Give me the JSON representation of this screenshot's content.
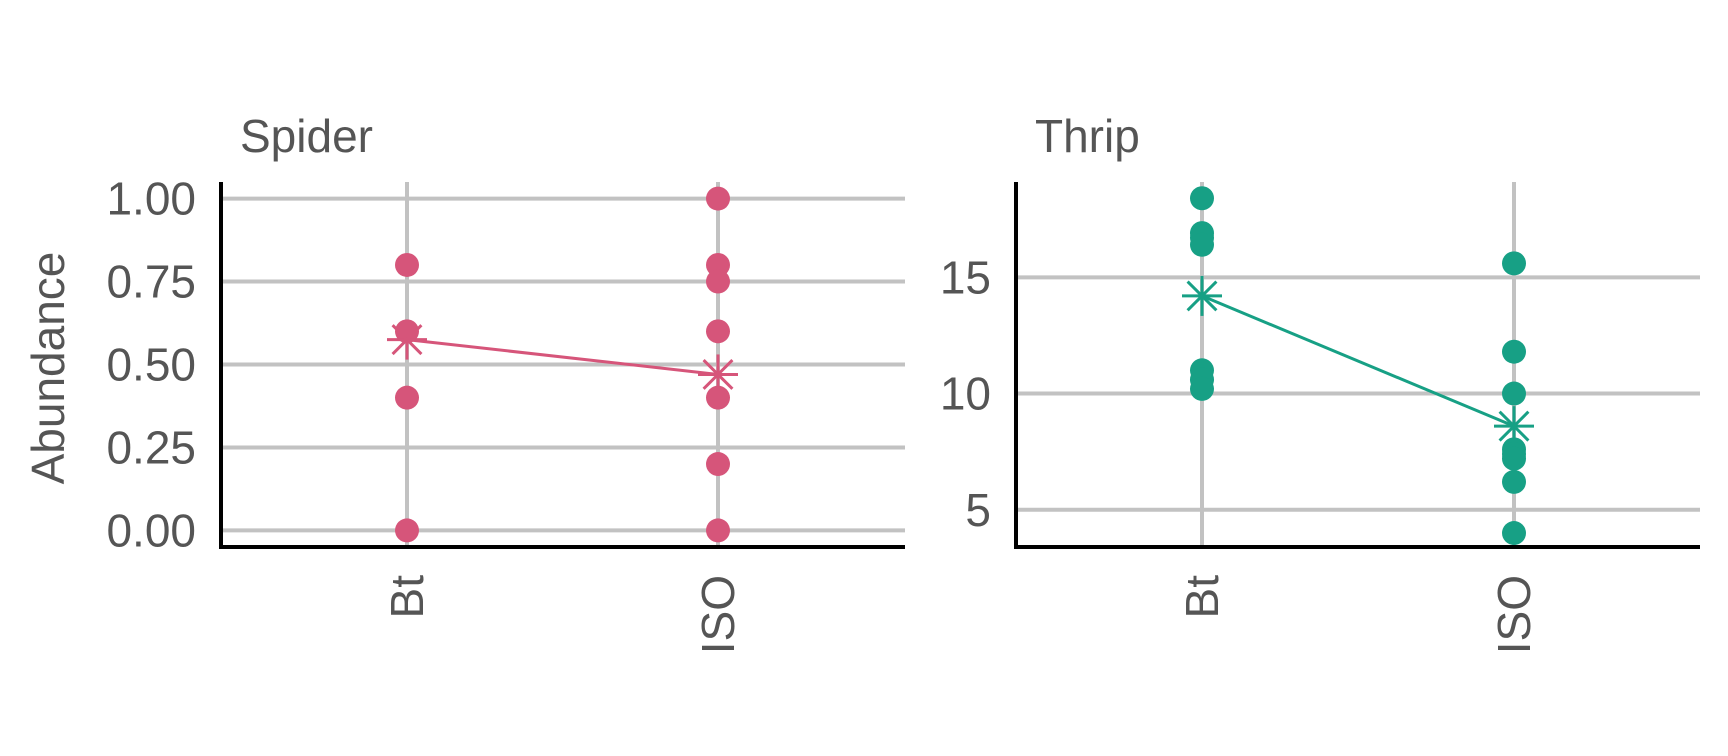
{
  "chart_data": {
    "type": "scatter",
    "ylabel": "Abundance",
    "categories": [
      "Bt",
      "ISO"
    ],
    "colors": {
      "Spider": "#d6557a",
      "Thrip": "#17a085"
    },
    "panels": [
      {
        "title": "Spider",
        "ylim": [
          -0.05,
          1.05
        ],
        "yticks": [
          0.0,
          0.25,
          0.5,
          0.75,
          1.0
        ],
        "ytick_labels": [
          "0.00",
          "0.25",
          "0.50",
          "0.75",
          "1.00"
        ],
        "points": {
          "Bt": [
            0.8,
            0.6,
            0.4,
            0.0
          ],
          "ISO": [
            1.0,
            0.8,
            0.75,
            0.6,
            0.4,
            0.2,
            0.0
          ]
        },
        "means": {
          "Bt": 0.575,
          "ISO": 0.47
        }
      },
      {
        "title": "Thrip",
        "ylim": [
          3.4,
          19.1
        ],
        "yticks": [
          5,
          10,
          15
        ],
        "ytick_labels": [
          "5",
          "10",
          "15"
        ],
        "points": {
          "Bt": [
            18.4,
            16.9,
            16.7,
            16.4,
            11.0,
            10.6,
            10.2
          ],
          "ISO": [
            15.6,
            11.8,
            10.0,
            7.6,
            7.4,
            7.2,
            6.2,
            4.0
          ]
        },
        "means": {
          "Bt": 14.2,
          "ISO": 8.6
        }
      }
    ]
  }
}
